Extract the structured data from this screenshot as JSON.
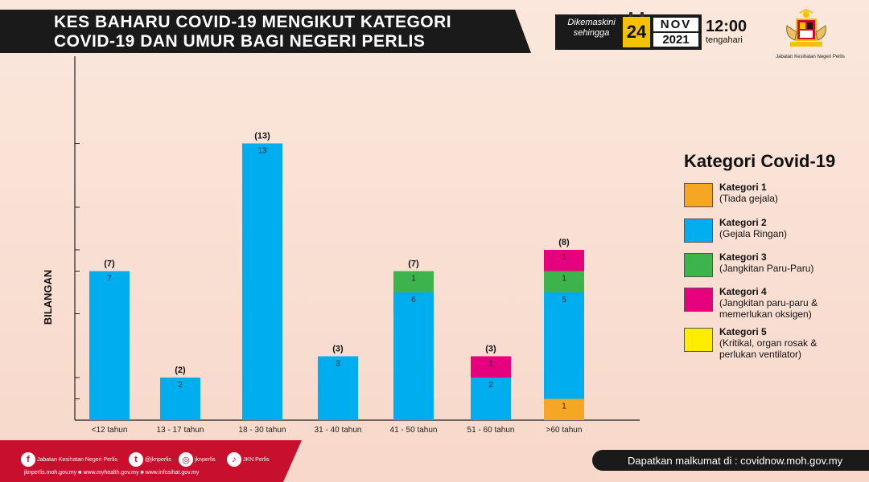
{
  "header": {
    "title_line1": "KES BAHARU COVID-19 MENGIKUT KATEGORI",
    "title_line2": "COVID-19 DAN UMUR BAGI NEGERI PERLIS"
  },
  "update": {
    "label_line1": "Dikemaskini",
    "label_line2": "sehingga",
    "day": "24",
    "month": "NOV",
    "year": "2021",
    "time": "12:00",
    "time_label": "tengahari"
  },
  "logo": {
    "caption": "Jabatan Kesihatan Negeri Perlis",
    "icon": "coat-of-arms-icon"
  },
  "legend": {
    "title": "Kategori Covid-19",
    "items": [
      {
        "name": "Kategori 1",
        "desc": "(Tiada gejala)",
        "color": "#f5a623"
      },
      {
        "name": "Kategori 2",
        "desc": "(Gejala Ringan)",
        "color": "#00aeef"
      },
      {
        "name": "Kategori 3",
        "desc": "(Jangkitan Paru-Paru)",
        "color": "#3cb44b"
      },
      {
        "name": "Kategori 4",
        "desc": "(Jangkitan paru-paru & memerlukan oksigen)",
        "color": "#e6007e"
      },
      {
        "name": "Kategori 5",
        "desc": "(Kritikal, organ rosak & perlukan ventilator)",
        "color": "#ffed00"
      }
    ]
  },
  "chart_data": {
    "type": "bar",
    "stacked": true,
    "title": "KES BAHARU COVID-19 MENGIKUT KATEGORI COVID-19 DAN UMUR BAGI NEGERI PERLIS",
    "xlabel": "",
    "ylabel": "BILANGAN",
    "ylim": [
      0,
      13
    ],
    "categories": [
      "<12 tahun",
      "13 - 17 tahun",
      "18 - 30 tahun",
      "31 - 40 tahun",
      "41 - 50 tahun",
      "51 - 60 tahun",
      ">60 tahun"
    ],
    "totals": [
      7,
      2,
      13,
      3,
      7,
      3,
      8
    ],
    "series": [
      {
        "name": "Kategori 1",
        "color": "#f5a623",
        "values": [
          0,
          0,
          0,
          0,
          0,
          0,
          1
        ]
      },
      {
        "name": "Kategori 2",
        "color": "#00aeef",
        "values": [
          7,
          2,
          13,
          3,
          6,
          2,
          5
        ]
      },
      {
        "name": "Kategori 3",
        "color": "#3cb44b",
        "values": [
          0,
          0,
          0,
          0,
          1,
          0,
          1
        ]
      },
      {
        "name": "Kategori 4",
        "color": "#e6007e",
        "values": [
          0,
          0,
          0,
          0,
          0,
          1,
          1
        ]
      },
      {
        "name": "Kategori 5",
        "color": "#ffed00",
        "values": [
          0,
          0,
          0,
          0,
          0,
          0,
          0
        ]
      }
    ],
    "grid": false,
    "legend_position": "right"
  },
  "footer": {
    "socials": [
      {
        "icon": "facebook-icon",
        "glyph": "f",
        "label": "Jabatan Kesihatan Negeri Perlis"
      },
      {
        "icon": "twitter-icon",
        "glyph": "t",
        "label": "@jknperlis"
      },
      {
        "icon": "instagram-icon",
        "glyph": "◎",
        "label": "jknperlis"
      },
      {
        "icon": "tiktok-icon",
        "glyph": "♪",
        "label": "JKN Perlis"
      }
    ],
    "websites": "jknperlis.moh.gov.my ■ www.myhealth.gov.my ■ www.infosihat.gov.my",
    "info": "Dapatkan malkumat di : covidnow.moh.gov.my"
  }
}
